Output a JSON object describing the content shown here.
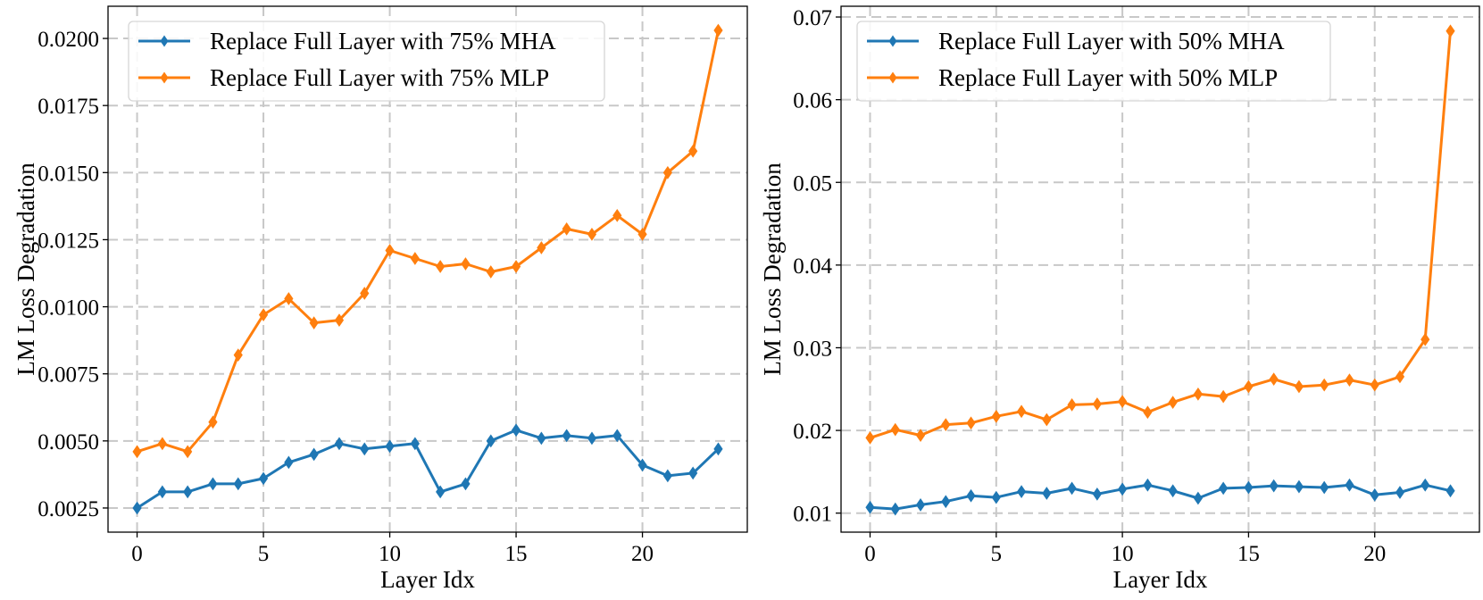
{
  "chart_data": [
    {
      "type": "line",
      "title": "",
      "xlabel": "Layer Idx",
      "ylabel": "LM Loss Degradation",
      "xlim": [
        -1.15,
        24.15
      ],
      "ylim": [
        0.0016,
        0.0212
      ],
      "xticks": [
        0,
        5,
        10,
        15,
        20
      ],
      "xtick_labels": [
        "0",
        "5",
        "10",
        "15",
        "20"
      ],
      "yticks": [
        0.0025,
        0.005,
        0.0075,
        0.01,
        0.0125,
        0.015,
        0.0175,
        0.02
      ],
      "ytick_labels": [
        "0.0025",
        "0.0050",
        "0.0075",
        "0.0100",
        "0.0125",
        "0.0150",
        "0.0175",
        "0.0200"
      ],
      "grid": true,
      "legend_position": "top-left",
      "x": [
        0,
        1,
        2,
        3,
        4,
        5,
        6,
        7,
        8,
        9,
        10,
        11,
        12,
        13,
        14,
        15,
        16,
        17,
        18,
        19,
        20,
        21,
        22,
        23
      ],
      "series": [
        {
          "name": "Replace Full Layer with 75% MHA",
          "color": "#1f77b4",
          "marker": "thin-diamond",
          "values": [
            0.0025,
            0.0031,
            0.0031,
            0.0034,
            0.0034,
            0.0036,
            0.0042,
            0.0045,
            0.0049,
            0.0047,
            0.0048,
            0.0049,
            0.0031,
            0.0034,
            0.005,
            0.0054,
            0.0051,
            0.0052,
            0.0051,
            0.0052,
            0.0041,
            0.0037,
            0.0038,
            0.0047
          ]
        },
        {
          "name": "Replace Full Layer with 75% MLP",
          "color": "#ff7f0e",
          "marker": "thin-diamond",
          "values": [
            0.0046,
            0.0049,
            0.0046,
            0.0057,
            0.0082,
            0.0097,
            0.0103,
            0.0094,
            0.0095,
            0.0105,
            0.0121,
            0.0118,
            0.0115,
            0.0116,
            0.0113,
            0.0115,
            0.0122,
            0.0129,
            0.0127,
            0.0134,
            0.0127,
            0.015,
            0.0158,
            0.0203
          ]
        }
      ]
    },
    {
      "type": "line",
      "title": "",
      "xlabel": "Layer Idx",
      "ylabel": "LM Loss Degradation",
      "xlim": [
        -1.15,
        24.15
      ],
      "ylim": [
        0.0077,
        0.0713
      ],
      "xticks": [
        0,
        5,
        10,
        15,
        20
      ],
      "xtick_labels": [
        "0",
        "5",
        "10",
        "15",
        "20"
      ],
      "yticks": [
        0.01,
        0.02,
        0.03,
        0.04,
        0.05,
        0.06,
        0.07
      ],
      "ytick_labels": [
        "0.01",
        "0.02",
        "0.03",
        "0.04",
        "0.05",
        "0.06",
        "0.07"
      ],
      "grid": true,
      "legend_position": "top-left",
      "x": [
        0,
        1,
        2,
        3,
        4,
        5,
        6,
        7,
        8,
        9,
        10,
        11,
        12,
        13,
        14,
        15,
        16,
        17,
        18,
        19,
        20,
        21,
        22,
        23
      ],
      "series": [
        {
          "name": "Replace Full Layer with 50% MHA",
          "color": "#1f77b4",
          "marker": "thin-diamond",
          "values": [
            0.0107,
            0.0105,
            0.011,
            0.0114,
            0.0121,
            0.0119,
            0.0126,
            0.0124,
            0.013,
            0.0123,
            0.0129,
            0.0134,
            0.0127,
            0.0118,
            0.013,
            0.0131,
            0.0133,
            0.0132,
            0.0131,
            0.0134,
            0.0122,
            0.0125,
            0.0134,
            0.0127
          ]
        },
        {
          "name": "Replace Full Layer with 50% MLP",
          "color": "#ff7f0e",
          "marker": "thin-diamond",
          "values": [
            0.0191,
            0.0201,
            0.0194,
            0.0207,
            0.0209,
            0.0217,
            0.0223,
            0.0213,
            0.0231,
            0.0232,
            0.0235,
            0.0222,
            0.0234,
            0.0244,
            0.0241,
            0.0253,
            0.0262,
            0.0253,
            0.0255,
            0.0261,
            0.0255,
            0.0265,
            0.031,
            0.0683
          ]
        }
      ]
    }
  ]
}
